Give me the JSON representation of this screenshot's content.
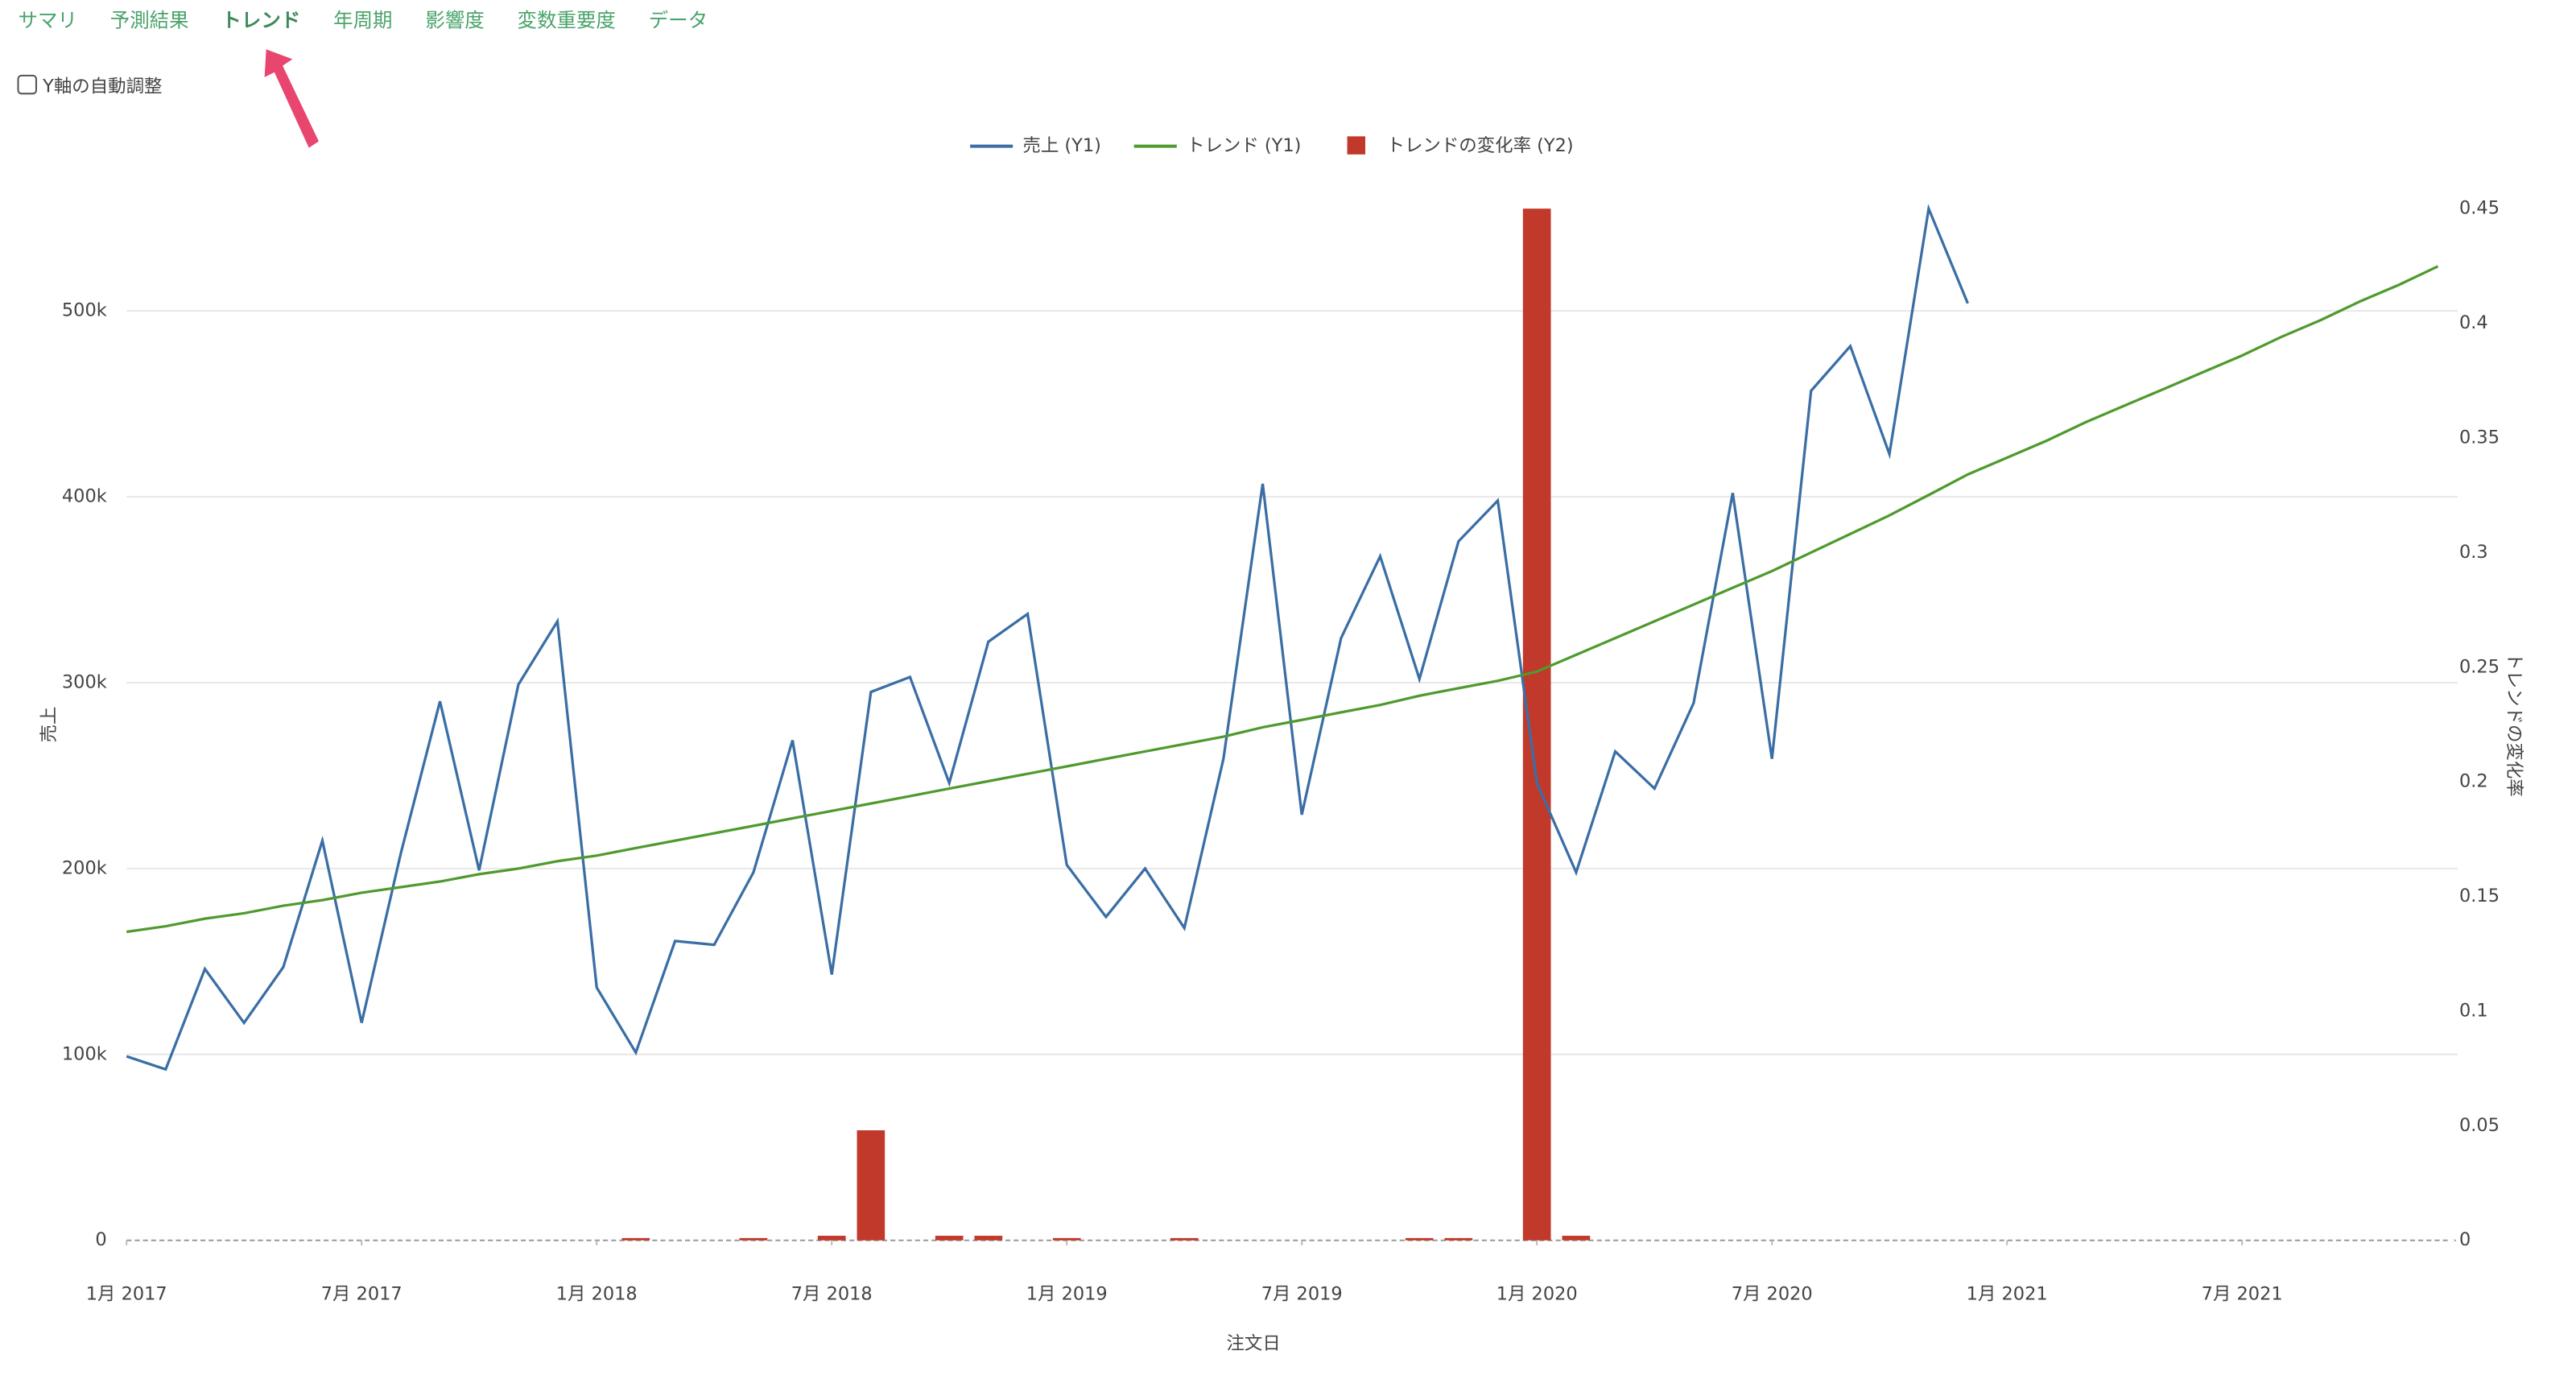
{
  "tabs": [
    "サマリ",
    "予測結果",
    "トレンド",
    "年周期",
    "影響度",
    "変数重要度",
    "データ"
  ],
  "active_tab": "トレンド",
  "checkbox_label": "Y軸の自動調整",
  "chart_data": {
    "type": "line",
    "x_label": "注文日",
    "y_label": "売上",
    "y2_label": "トレンドの変化率",
    "xlim": [
      "2017-01",
      "2021-12"
    ],
    "xticks": [
      {
        "value": "2017-01",
        "label": "1月 2017"
      },
      {
        "value": "2017-07",
        "label": "7月 2017"
      },
      {
        "value": "2018-01",
        "label": "1月 2018"
      },
      {
        "value": "2018-07",
        "label": "7月 2018"
      },
      {
        "value": "2019-01",
        "label": "1月 2019"
      },
      {
        "value": "2019-07",
        "label": "7月 2019"
      },
      {
        "value": "2020-01",
        "label": "1月 2020"
      },
      {
        "value": "2020-07",
        "label": "7月 2020"
      },
      {
        "value": "2021-01",
        "label": "1月 2021"
      },
      {
        "value": "2021-07",
        "label": "7月 2021"
      }
    ],
    "ylim": [
      0,
      555000
    ],
    "yticks": [
      0,
      {
        "value": 100000,
        "label": "100k"
      },
      {
        "value": 200000,
        "label": "200k"
      },
      {
        "value": 300000,
        "label": "300k"
      },
      {
        "value": 400000,
        "label": "400k"
      },
      {
        "value": 500000,
        "label": "500k"
      }
    ],
    "y2lim": [
      0,
      0.45
    ],
    "y2ticks": [
      0,
      0.05,
      0.1,
      0.15,
      0.2,
      0.25,
      0.3,
      0.35,
      0.4,
      0.45
    ],
    "grid": true,
    "legend": "top",
    "series": [
      {
        "name": "売上 (Y1)",
        "type": "line",
        "color": "#3a6ea5",
        "x": [
          "2017-01",
          "2017-02",
          "2017-03",
          "2017-04",
          "2017-05",
          "2017-06",
          "2017-07",
          "2017-08",
          "2017-09",
          "2017-10",
          "2017-11",
          "2017-12",
          "2018-01",
          "2018-02",
          "2018-03",
          "2018-04",
          "2018-05",
          "2018-06",
          "2018-07",
          "2018-08",
          "2018-09",
          "2018-10",
          "2018-11",
          "2018-12",
          "2019-01",
          "2019-02",
          "2019-03",
          "2019-04",
          "2019-05",
          "2019-06",
          "2019-07",
          "2019-08",
          "2019-09",
          "2019-10",
          "2019-11",
          "2019-12",
          "2020-01",
          "2020-02",
          "2020-03",
          "2020-04",
          "2020-05",
          "2020-06",
          "2020-07",
          "2020-08",
          "2020-09",
          "2020-10",
          "2020-11",
          "2020-12"
        ],
        "values": [
          99000,
          92000,
          146000,
          117000,
          147000,
          215000,
          117000,
          208000,
          290000,
          199000,
          299000,
          333000,
          136000,
          101000,
          161000,
          159000,
          198000,
          269000,
          143000,
          295000,
          303000,
          246000,
          322000,
          337000,
          202000,
          174000,
          200000,
          168000,
          259000,
          407000,
          229000,
          324000,
          368000,
          302000,
          376000,
          398000,
          246000,
          198000,
          263000,
          243000,
          289000,
          402000,
          259000,
          457000,
          481000,
          423000,
          555000,
          504000
        ]
      },
      {
        "name": "トレンド (Y1)",
        "type": "line",
        "color": "#4f9a2e",
        "x": [
          "2017-01",
          "2017-02",
          "2017-03",
          "2017-04",
          "2017-05",
          "2017-06",
          "2017-07",
          "2017-08",
          "2017-09",
          "2017-10",
          "2017-11",
          "2017-12",
          "2018-01",
          "2018-02",
          "2018-03",
          "2018-04",
          "2018-05",
          "2018-06",
          "2018-07",
          "2018-08",
          "2018-09",
          "2018-10",
          "2018-11",
          "2018-12",
          "2019-01",
          "2019-02",
          "2019-03",
          "2019-04",
          "2019-05",
          "2019-06",
          "2019-07",
          "2019-08",
          "2019-09",
          "2019-10",
          "2019-11",
          "2019-12",
          "2020-01",
          "2020-02",
          "2020-03",
          "2020-04",
          "2020-05",
          "2020-06",
          "2020-07",
          "2020-08",
          "2020-09",
          "2020-10",
          "2020-11",
          "2020-12",
          "2021-01",
          "2021-02",
          "2021-03",
          "2021-04",
          "2021-05",
          "2021-06",
          "2021-07",
          "2021-08",
          "2021-09",
          "2021-10",
          "2021-11",
          "2021-12"
        ],
        "values": [
          166000,
          169000,
          173000,
          176000,
          180000,
          183000,
          187000,
          190000,
          193000,
          197000,
          200000,
          204000,
          207000,
          211000,
          215000,
          219000,
          223000,
          227000,
          231000,
          235000,
          239000,
          243000,
          247000,
          251000,
          255000,
          259000,
          263000,
          267000,
          271000,
          276000,
          280000,
          284000,
          288000,
          293000,
          297000,
          301000,
          306000,
          315000,
          324000,
          333000,
          342000,
          351000,
          360000,
          370000,
          380000,
          390000,
          401000,
          412000,
          421000,
          430000,
          440000,
          449000,
          458000,
          467000,
          476000,
          486000,
          495000,
          505000,
          514000,
          524000
        ]
      },
      {
        "name": "トレンドの変化率 (Y2)",
        "type": "bar",
        "axis": "y2",
        "color": "#c0392b",
        "x": [
          "2018-02",
          "2018-05",
          "2018-07",
          "2018-08",
          "2018-10",
          "2018-11",
          "2019-01",
          "2019-04",
          "2019-10",
          "2019-11",
          "2020-01",
          "2020-02"
        ],
        "values": [
          0.001,
          0.001,
          0.002,
          0.048,
          0.002,
          0.002,
          0.001,
          0.001,
          0.001,
          0.001,
          0.45,
          0.002
        ]
      }
    ]
  }
}
